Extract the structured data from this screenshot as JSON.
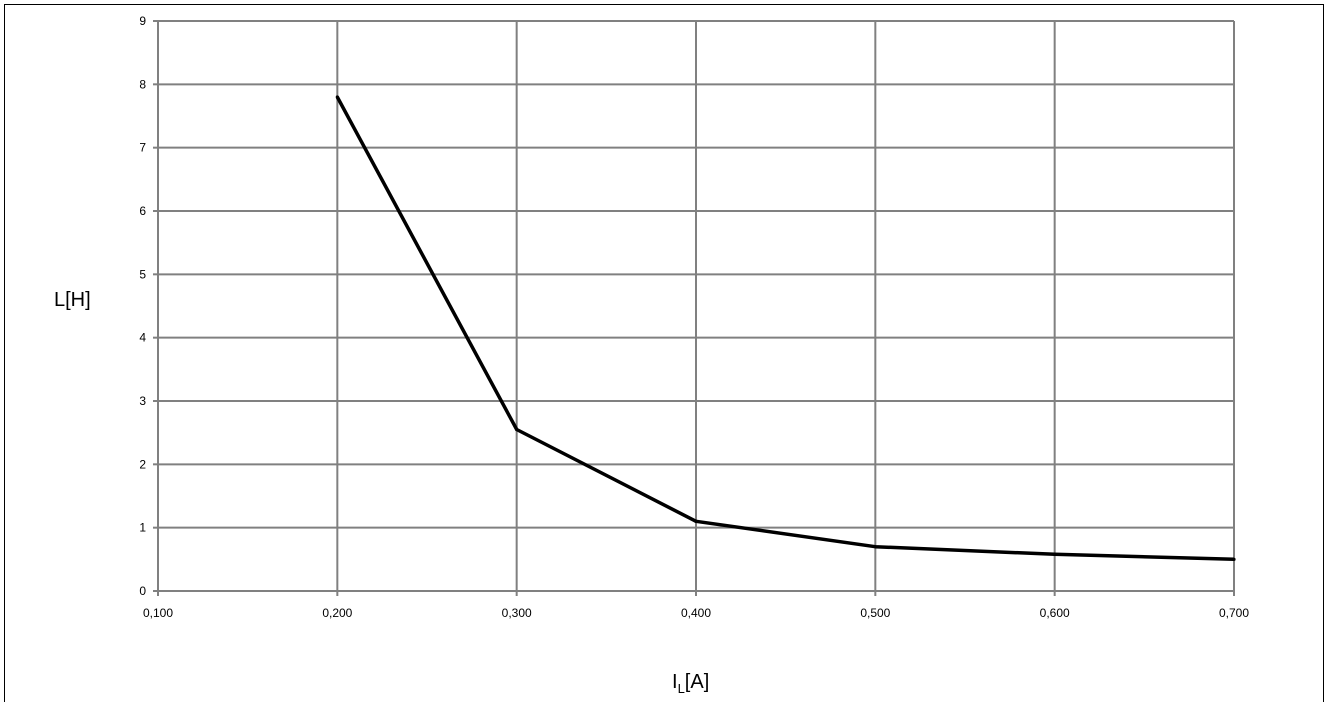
{
  "chart_data": {
    "type": "line",
    "title": "",
    "xlabel": {
      "main": "I",
      "subscript": "L",
      "unit": "[A]"
    },
    "ylabel": "L[H]",
    "xlim": [
      0.1,
      0.7
    ],
    "ylim": [
      0,
      9
    ],
    "x_ticks": [
      "0,100",
      "0,200",
      "0,300",
      "0,400",
      "0,500",
      "0,600",
      "0,700"
    ],
    "y_ticks": [
      "0",
      "1",
      "2",
      "3",
      "4",
      "5",
      "6",
      "7",
      "8",
      "9"
    ],
    "grid": true,
    "legend": "none",
    "series": [
      {
        "color": "#000000",
        "points": [
          {
            "x": 0.2,
            "y": 7.8
          },
          {
            "x": 0.3,
            "y": 2.55
          },
          {
            "x": 0.4,
            "y": 1.1
          },
          {
            "x": 0.5,
            "y": 0.7
          },
          {
            "x": 0.6,
            "y": 0.58
          },
          {
            "x": 0.7,
            "y": 0.5
          }
        ]
      }
    ],
    "grid_color": "#808080"
  }
}
